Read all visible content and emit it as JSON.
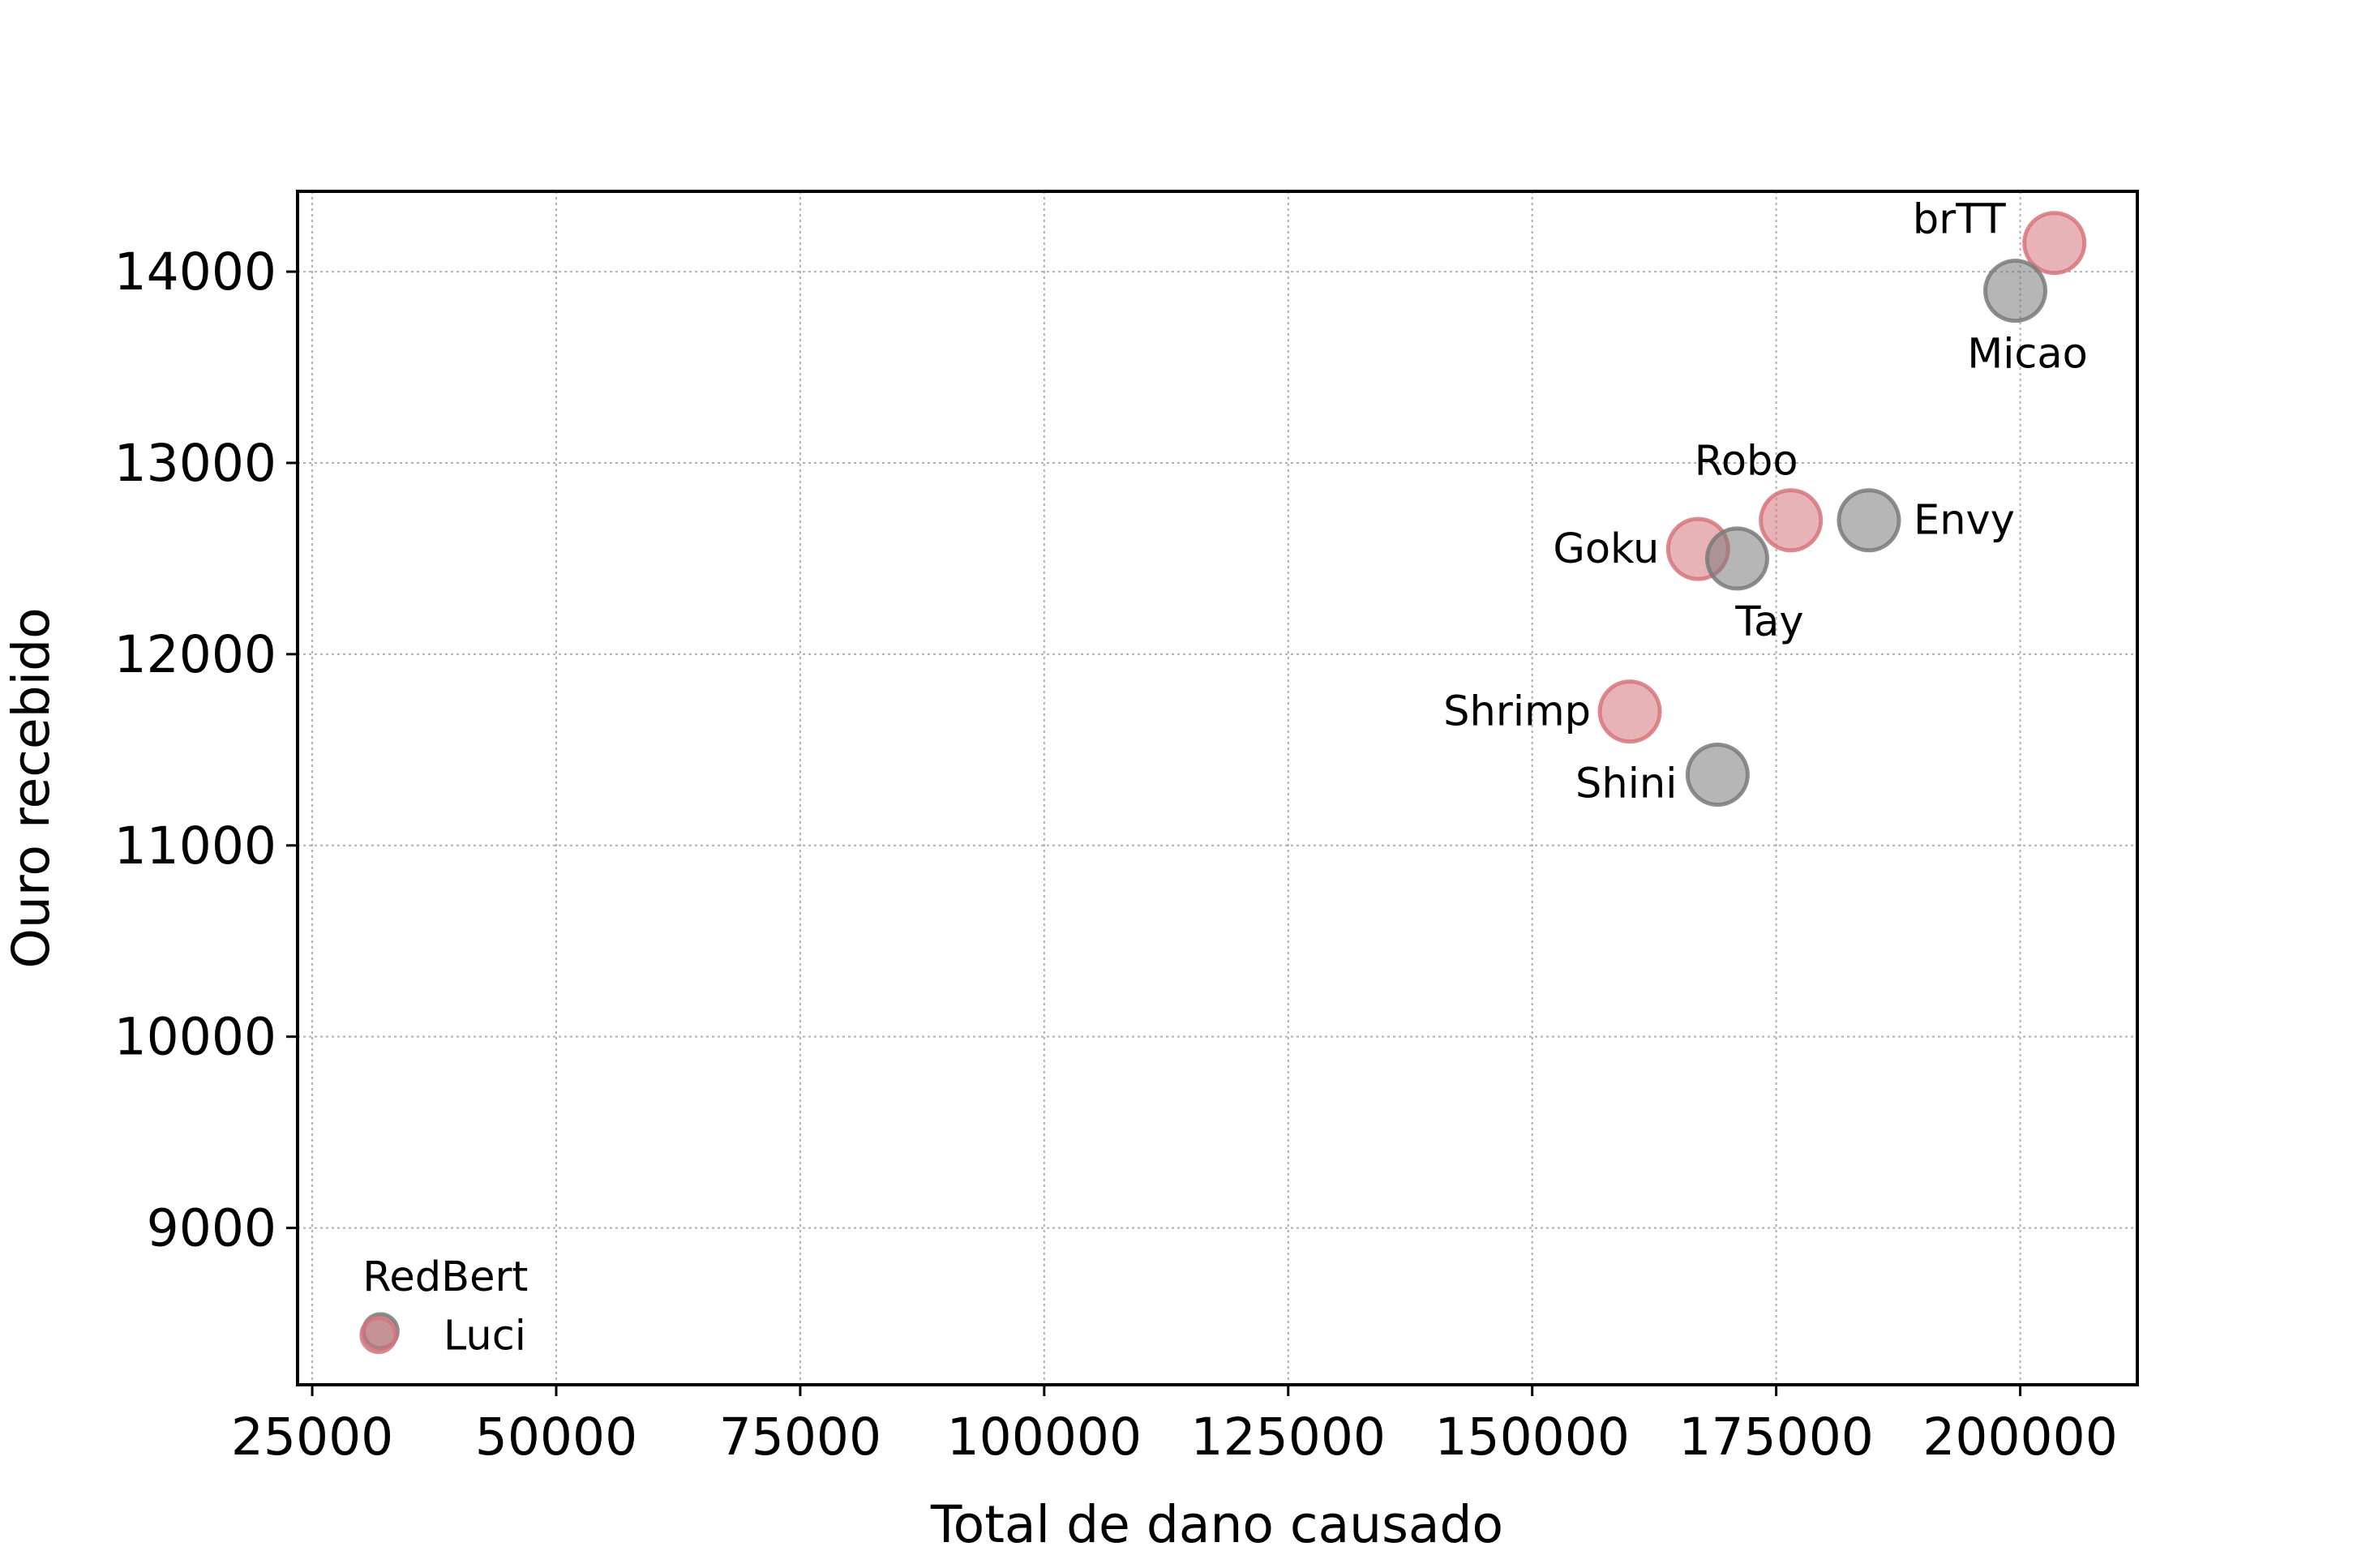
{
  "chart_data": {
    "type": "scatter",
    "title": "",
    "xlabel": "Total de dano causado",
    "ylabel": "Ouro recebido",
    "xlim": [
      23500,
      212000
    ],
    "ylim": [
      8180,
      14420
    ],
    "xticks": [
      25000,
      50000,
      75000,
      100000,
      125000,
      150000,
      175000,
      200000
    ],
    "yticks": [
      9000,
      10000,
      11000,
      12000,
      13000,
      14000
    ],
    "grid": true,
    "colors": {
      "red": "#d6747c",
      "gray": "#7a7a7a"
    },
    "points": [
      {
        "name": "brTT",
        "x": 203500,
        "y": 14150,
        "color": "red",
        "label_pos": "upper-left"
      },
      {
        "name": "Micao",
        "x": 199500,
        "y": 13900,
        "color": "gray",
        "label_pos": "below"
      },
      {
        "name": "Robo",
        "x": 176500,
        "y": 12700,
        "color": "red",
        "label_pos": "above-left"
      },
      {
        "name": "Envy",
        "x": 184500,
        "y": 12700,
        "color": "gray",
        "label_pos": "right"
      },
      {
        "name": "Goku",
        "x": 167000,
        "y": 12550,
        "color": "red",
        "label_pos": "left"
      },
      {
        "name": "Tay",
        "x": 171000,
        "y": 12500,
        "color": "gray",
        "label_pos": "below-right"
      },
      {
        "name": "Shrimp",
        "x": 160000,
        "y": 11700,
        "color": "red",
        "label_pos": "left"
      },
      {
        "name": "Shini",
        "x": 169000,
        "y": 11370,
        "color": "gray",
        "label_pos": "lower-left"
      },
      {
        "name": "RedBert",
        "x": 32000,
        "y": 8460,
        "color": "gray",
        "label_pos": "above"
      },
      {
        "name": "Luci",
        "x": 31800,
        "y": 8440,
        "color": "red",
        "label_pos": "right"
      }
    ]
  }
}
